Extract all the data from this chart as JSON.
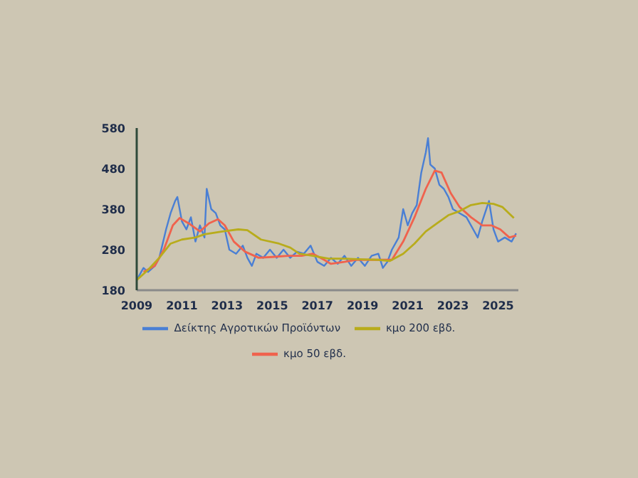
{
  "chart_data": {
    "type": "line",
    "xlim": [
      2009,
      2025.9
    ],
    "xticks": [
      2009,
      2011,
      2013,
      2015,
      2017,
      2019,
      2021,
      2023,
      2025
    ],
    "ylim": [
      180,
      580
    ],
    "yticks": [
      180,
      280,
      380,
      480,
      580
    ],
    "grid": false,
    "legend": "bottom",
    "marker": "none",
    "line_style": "solid",
    "series": [
      {
        "name": "Δείκτης Αγροτικών Προϊόντων",
        "color": "#4a7fd4",
        "x": [
          2009.0,
          2009.3,
          2009.5,
          2009.8,
          2010.0,
          2010.3,
          2010.5,
          2010.7,
          2010.8,
          2011.0,
          2011.2,
          2011.4,
          2011.6,
          2011.8,
          2012.0,
          2012.1,
          2012.3,
          2012.5,
          2012.7,
          2012.9,
          2013.1,
          2013.4,
          2013.7,
          2013.9,
          2014.1,
          2014.3,
          2014.6,
          2014.9,
          2015.2,
          2015.5,
          2015.8,
          2016.1,
          2016.4,
          2016.7,
          2017.0,
          2017.3,
          2017.6,
          2017.9,
          2018.2,
          2018.5,
          2018.8,
          2019.1,
          2019.4,
          2019.7,
          2019.9,
          2020.1,
          2020.3,
          2020.6,
          2020.8,
          2021.0,
          2021.2,
          2021.4,
          2021.6,
          2021.8,
          2021.9,
          2022.0,
          2022.2,
          2022.4,
          2022.6,
          2022.8,
          2023.0,
          2023.3,
          2023.6,
          2023.9,
          2024.1,
          2024.3,
          2024.6,
          2024.8,
          2025.0,
          2025.3,
          2025.6,
          2025.8
        ],
        "values": [
          205,
          235,
          225,
          240,
          260,
          330,
          370,
          400,
          410,
          350,
          330,
          360,
          300,
          340,
          310,
          430,
          380,
          370,
          340,
          330,
          280,
          270,
          290,
          260,
          240,
          270,
          260,
          280,
          260,
          280,
          260,
          275,
          270,
          290,
          250,
          240,
          260,
          245,
          265,
          240,
          260,
          240,
          265,
          270,
          235,
          250,
          280,
          310,
          380,
          340,
          370,
          390,
          470,
          520,
          555,
          490,
          480,
          440,
          430,
          410,
          380,
          370,
          360,
          330,
          310,
          350,
          400,
          330,
          300,
          310,
          300,
          320
        ]
      },
      {
        "name": "κμο 50 εβδ.",
        "color": "#f0624d",
        "x": [
          2009.3,
          2009.8,
          2010.2,
          2010.6,
          2010.9,
          2011.3,
          2011.8,
          2012.2,
          2012.6,
          2012.9,
          2013.3,
          2013.8,
          2014.4,
          2015.0,
          2015.7,
          2016.3,
          2016.8,
          2017.3,
          2017.6,
          2018.2,
          2018.7,
          2019.3,
          2019.9,
          2020.3,
          2020.8,
          2021.3,
          2021.8,
          2022.2,
          2022.5,
          2022.9,
          2023.3,
          2023.8,
          2024.3,
          2024.7,
          2025.1,
          2025.5,
          2025.8
        ],
        "values": [
          225,
          240,
          280,
          340,
          358,
          345,
          325,
          345,
          355,
          340,
          300,
          275,
          260,
          262,
          265,
          265,
          270,
          255,
          245,
          250,
          255,
          255,
          255,
          255,
          300,
          360,
          430,
          475,
          470,
          420,
          385,
          360,
          340,
          340,
          330,
          310,
          315
        ]
      },
      {
        "name": "κμο 200 εβδ.",
        "color": "#b8ac1c",
        "x": [
          2009.0,
          2009.5,
          2010.0,
          2010.5,
          2011.0,
          2011.6,
          2012.0,
          2012.8,
          2013.5,
          2013.9,
          2014.5,
          2015.3,
          2015.8,
          2016.2,
          2016.8,
          2017.5,
          2018.2,
          2019.0,
          2019.7,
          2020.2,
          2020.8,
          2021.3,
          2021.8,
          2022.3,
          2022.8,
          2023.3,
          2023.8,
          2024.3,
          2024.8,
          2025.2,
          2025.7
        ],
        "values": [
          205,
          230,
          260,
          295,
          305,
          310,
          318,
          325,
          330,
          328,
          305,
          295,
          285,
          270,
          265,
          258,
          258,
          256,
          255,
          252,
          270,
          295,
          325,
          345,
          365,
          375,
          390,
          395,
          393,
          385,
          358
        ]
      }
    ]
  }
}
